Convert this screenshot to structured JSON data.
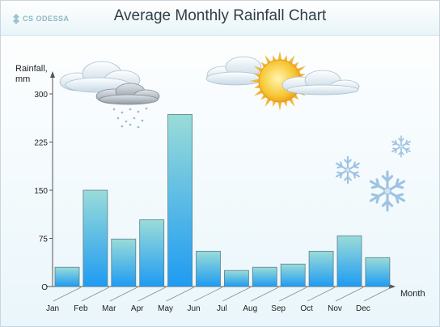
{
  "header": {
    "logo_text": "CS ODESSA",
    "title": "Average Monthly Rainfall Chart"
  },
  "chart_data": {
    "type": "bar",
    "title": "Average Monthly Rainfall Chart",
    "xlabel": "Month",
    "ylabel": "Rainfall,\nmm",
    "categories": [
      "Jan",
      "Feb",
      "Mar",
      "Apr",
      "May",
      "Jun",
      "Jul",
      "Aug",
      "Sep",
      "Oct",
      "Nov",
      "Dec"
    ],
    "values": [
      30,
      150,
      74,
      104,
      268,
      55,
      25,
      30,
      35,
      55,
      79,
      45
    ],
    "ylim": [
      0,
      300
    ],
    "yticks": [
      0,
      75,
      150,
      225,
      300
    ],
    "ytick_labels": [
      "O",
      "75",
      "150",
      "225",
      "300"
    ],
    "grid": false,
    "legend": "none",
    "colors": {
      "bar_top": "#9adcd8",
      "bar_bottom": "#1e9bf2",
      "bar_border": "#5b7f8c",
      "axis": "#555555"
    }
  },
  "decorations": {
    "icons": [
      "rain-cloud-icon",
      "sun-cloud-icon",
      "snowflake-icon"
    ]
  }
}
